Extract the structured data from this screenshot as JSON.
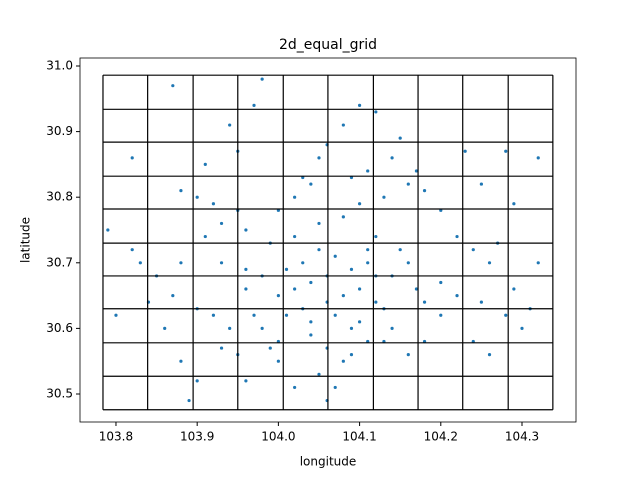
{
  "chart_data": {
    "type": "scatter",
    "title": "2d_equal_grid",
    "x_label": "longitude",
    "y_label": "latitude",
    "color": "#1f77b4",
    "xlim": [
      103.7557,
      104.3665
    ],
    "ylim": [
      30.4573,
      31.0122
    ],
    "xticks": [
      103.8,
      103.9,
      {
        "value": 104,
        "label": "104.0"
      },
      104.1,
      104.2,
      104.3
    ],
    "yticks": [
      30.5,
      30.6,
      30.7,
      30.8,
      30.9,
      {
        "value": 31,
        "label": "31.0"
      }
    ],
    "grid_x_edges": [
      103.784,
      103.839,
      103.895,
      103.95,
      104.006,
      104.061,
      104.117,
      104.172,
      104.227,
      104.283,
      104.338
    ],
    "grid_y_edges": [
      30.476,
      30.527,
      30.578,
      30.63,
      30.68,
      30.73,
      30.782,
      30.832,
      30.884,
      30.934,
      30.986
    ],
    "x": [
      104.0,
      104.02,
      104.04,
      104.06,
      104.08,
      104.1,
      104.12,
      104.03,
      104.05,
      104.07,
      104.09,
      104.11,
      104.01,
      104.04,
      104.07,
      104.1,
      104.13,
      103.98,
      103.96,
      103.97,
      104.14,
      104.16,
      104.17,
      104.18,
      104.15,
      104.12,
      104.02,
      103.99,
      104.05,
      104.08,
      104.1,
      104.13,
      104.16,
      104.18,
      104.04,
      104.06,
      104.08,
      104.05,
      104.07,
      104.06,
      104.09,
      104.11,
      104.0,
      103.98,
      103.94,
      103.92,
      103.93,
      103.95,
      103.9,
      103.87,
      103.85,
      103.83,
      103.82,
      103.88,
      103.91,
      103.93,
      103.96,
      103.95,
      103.9,
      103.88,
      103.92,
      104.0,
      104.02,
      104.03,
      104.05,
      104.06,
      104.09,
      104.11,
      104.14,
      104.17,
      104.2,
      104.22,
      104.24,
      104.26,
      104.2,
      104.22,
      104.25,
      104.28,
      104.3,
      104.31,
      104.26,
      104.24,
      104.18,
      104.16,
      104.13,
      104.2,
      104.27,
      104.29,
      104.25,
      104.23,
      104.28,
      104.32,
      104.32,
      104.29,
      103.79,
      103.8,
      103.84,
      103.86,
      103.88,
      103.9,
      103.89,
      103.96,
      104.0,
      104.02,
      103.97,
      103.94,
      103.95,
      103.91,
      103.82,
      103.87,
      103.98,
      104.1,
      104.12,
      104.08,
      104.15,
      104.04,
      103.93,
      103.96,
      104.14,
      103.99,
      104.03,
      104.09,
      104.12,
      104.01,
      104.06,
      104.11
    ],
    "y": [
      30.65,
      30.66,
      30.67,
      30.68,
      30.65,
      30.66,
      30.64,
      30.7,
      30.72,
      30.71,
      30.69,
      30.7,
      30.62,
      30.61,
      30.62,
      30.61,
      30.63,
      30.68,
      30.66,
      30.62,
      30.68,
      30.7,
      30.66,
      30.64,
      30.72,
      30.74,
      30.74,
      30.73,
      30.76,
      30.77,
      30.79,
      30.8,
      30.82,
      30.81,
      30.59,
      30.57,
      30.55,
      30.53,
      30.51,
      30.49,
      30.56,
      30.58,
      30.58,
      30.6,
      30.6,
      30.62,
      30.57,
      30.56,
      30.63,
      30.65,
      30.68,
      30.7,
      30.72,
      30.7,
      30.74,
      30.76,
      30.75,
      30.78,
      30.8,
      30.81,
      30.79,
      30.78,
      30.8,
      30.83,
      30.86,
      30.88,
      30.83,
      30.84,
      30.86,
      30.84,
      30.78,
      30.74,
      30.72,
      30.7,
      30.67,
      30.65,
      30.64,
      30.62,
      30.6,
      30.63,
      30.56,
      30.58,
      30.58,
      30.56,
      30.58,
      30.62,
      30.73,
      30.79,
      30.82,
      30.87,
      30.87,
      30.86,
      30.7,
      30.66,
      30.75,
      30.62,
      30.64,
      30.6,
      30.55,
      30.52,
      30.49,
      30.52,
      30.55,
      30.51,
      30.94,
      30.91,
      30.87,
      30.85,
      30.86,
      30.97,
      30.98,
      30.94,
      30.93,
      30.91,
      30.89,
      30.82,
      30.7,
      30.69,
      30.6,
      30.57,
      30.63,
      30.6,
      30.68,
      30.69,
      30.64,
      30.72
    ]
  }
}
